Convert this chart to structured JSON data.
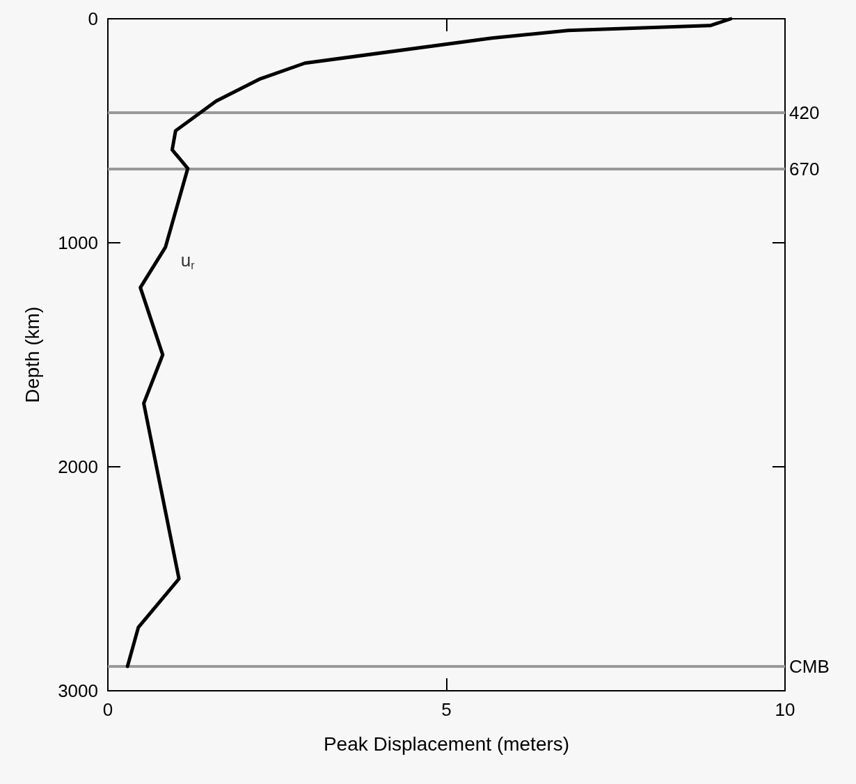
{
  "chart_data": {
    "type": "line",
    "xlabel": "Peak Displacement (meters)",
    "ylabel": "Depth (km)",
    "x": [
      9.2,
      8.9,
      6.8,
      5.67,
      2.91,
      2.25,
      1.6,
      1.0,
      0.95,
      1.18,
      0.85,
      0.48,
      0.81,
      0.53,
      1.05,
      0.45,
      0.29
    ],
    "series": [
      {
        "color": "#000000",
        "values": [
          0,
          30,
          52,
          86,
          198,
          268,
          367,
          500,
          585,
          668,
          1020,
          1200,
          1500,
          1717,
          2500,
          2717,
          2891
        ]
      }
    ],
    "xlim": [
      0,
      10
    ],
    "xticks": [
      0,
      5,
      10
    ],
    "ylim": [
      3000,
      0
    ],
    "yticks": [
      0,
      1000,
      2000,
      3000
    ],
    "marker": "none",
    "line_style": "solid",
    "ref_lines": [
      {
        "axis": "y",
        "value": 420,
        "label": "420",
        "color": "#999999"
      },
      {
        "axis": "y",
        "value": 670,
        "label": "670",
        "color": "#999999"
      },
      {
        "axis": "y",
        "value": 2891,
        "label": "CMB",
        "color": "#999999"
      }
    ],
    "annotations": [
      {
        "text": "u$_{r}$",
        "x": 0.85,
        "y": 1020
      }
    ]
  }
}
